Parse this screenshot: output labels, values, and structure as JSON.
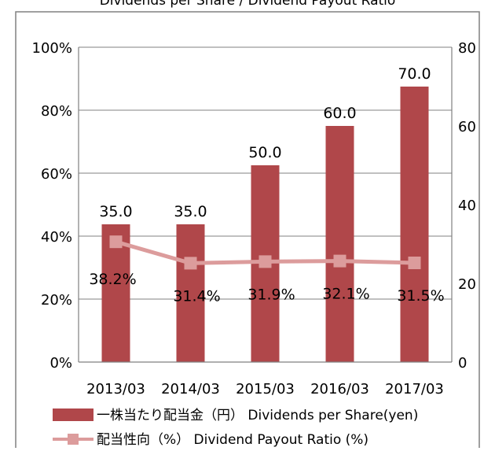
{
  "chart_data": {
    "type": "bar",
    "title": "Dividends per Share / Dividend Payout Ratio",
    "categories": [
      "2013/03",
      "2014/03",
      "2015/03",
      "2016/03",
      "2017/03"
    ],
    "series": [
      {
        "name": "一株当たり配当金（円） Dividends per Share(yen)",
        "type": "bar",
        "axis": "right",
        "values": [
          35.0,
          35.0,
          50.0,
          60.0,
          70.0
        ],
        "labels": [
          "35.0",
          "35.0",
          "50.0",
          "60.0",
          "70.0"
        ],
        "color": "#b0474a"
      },
      {
        "name": "配当性向（%） Dividend Payout Ratio (%)",
        "type": "line",
        "axis": "left",
        "values": [
          38.2,
          31.4,
          31.9,
          32.1,
          31.5
        ],
        "labels": [
          "38.2%",
          "31.4%",
          "31.9%",
          "32.1%",
          "31.5%"
        ],
        "color": "#dc9c9c"
      }
    ],
    "left_axis": {
      "ticks": [
        "0%",
        "20%",
        "40%",
        "60%",
        "80%",
        "100%"
      ],
      "range": [
        0,
        100
      ]
    },
    "right_axis": {
      "ticks": [
        "0",
        "20",
        "40",
        "60",
        "80"
      ],
      "range": [
        0,
        80
      ]
    },
    "grid": true,
    "legend_position": "bottom"
  }
}
